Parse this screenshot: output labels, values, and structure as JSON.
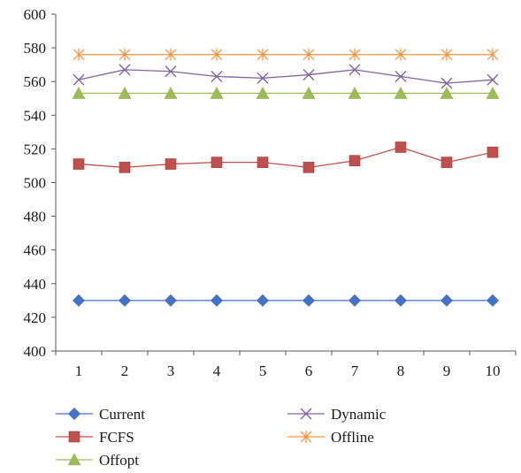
{
  "chart_data": {
    "type": "line",
    "title": "",
    "xlabel": "",
    "ylabel": "",
    "x": [
      1,
      2,
      3,
      4,
      5,
      6,
      7,
      8,
      9,
      10
    ],
    "ylim": [
      400,
      600
    ],
    "yticks": [
      400,
      420,
      440,
      460,
      480,
      500,
      520,
      540,
      560,
      580,
      600
    ],
    "grid": false,
    "legend_position": "bottom",
    "series": [
      {
        "name": "Current",
        "color": "#4472C4",
        "marker": "diamond",
        "values": [
          430,
          430,
          430,
          430,
          430,
          430,
          430,
          430,
          430,
          430
        ]
      },
      {
        "name": "FCFS",
        "color": "#C0504D",
        "marker": "square",
        "values": [
          511,
          509,
          511,
          512,
          512,
          509,
          513,
          521,
          512,
          518
        ]
      },
      {
        "name": "Offopt",
        "color": "#9BBB59",
        "marker": "triangle",
        "values": [
          553,
          553,
          553,
          553,
          553,
          553,
          553,
          553,
          553,
          553
        ]
      },
      {
        "name": "Dynamic",
        "color": "#8064A2",
        "marker": "x",
        "values": [
          561,
          567,
          566,
          563,
          562,
          564,
          567,
          563,
          559,
          561
        ]
      },
      {
        "name": "Offline",
        "color": "#F79646",
        "marker": "star",
        "values": [
          576,
          576,
          576,
          576,
          576,
          576,
          576,
          576,
          576,
          576
        ]
      }
    ]
  }
}
